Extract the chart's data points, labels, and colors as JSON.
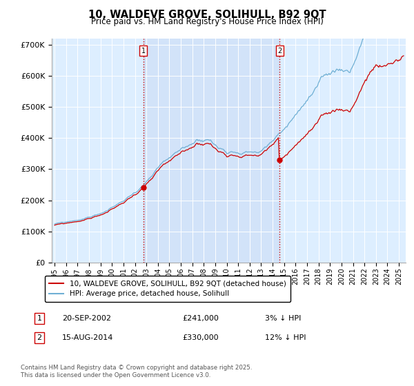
{
  "title": "10, WALDEVE GROVE, SOLIHULL, B92 9QT",
  "subtitle": "Price paid vs. HM Land Registry's House Price Index (HPI)",
  "legend_line1": "10, WALDEVE GROVE, SOLIHULL, B92 9QT (detached house)",
  "legend_line2": "HPI: Average price, detached house, Solihull",
  "footnote": "Contains HM Land Registry data © Crown copyright and database right 2025.\nThis data is licensed under the Open Government Licence v3.0.",
  "sale1_label": "1",
  "sale1_date": "20-SEP-2002",
  "sale1_price": "£241,000",
  "sale1_hpi": "3% ↓ HPI",
  "sale2_label": "2",
  "sale2_date": "15-AUG-2014",
  "sale2_price": "£330,000",
  "sale2_hpi": "12% ↓ HPI",
  "sale1_year": 2002.72,
  "sale1_value": 241000,
  "sale2_year": 2014.62,
  "sale2_value": 330000,
  "hpi_color": "#6fafd4",
  "price_color": "#cc0000",
  "vline_color": "#cc0000",
  "bg_color": "#ddeeff",
  "shade_color": "#ccddf5",
  "ylim": [
    0,
    720000
  ],
  "yticks": [
    0,
    100000,
    200000,
    300000,
    400000,
    500000,
    600000,
    700000
  ],
  "xlim_start": 1994.75,
  "xlim_end": 2025.6,
  "xtick_years": [
    1995,
    1996,
    1997,
    1998,
    1999,
    2000,
    2001,
    2002,
    2003,
    2004,
    2005,
    2006,
    2007,
    2008,
    2009,
    2010,
    2011,
    2012,
    2013,
    2014,
    2015,
    2016,
    2017,
    2018,
    2019,
    2020,
    2021,
    2022,
    2023,
    2024,
    2025
  ]
}
